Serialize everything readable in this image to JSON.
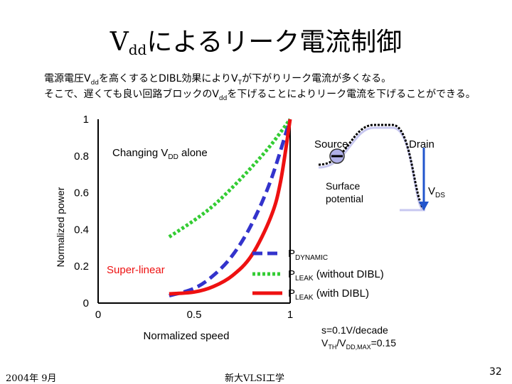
{
  "slide": {
    "title_main": "V",
    "title_sub": "dd",
    "title_rest": "によるリーク電流制御",
    "desc_line1": {
      "a": "電源電圧V",
      "sub1": "dd",
      "b": "を高くするとDIBL効果によりV",
      "sub2": "T",
      "c": "が下がりリーク電流が多くなる。"
    },
    "desc_line2": {
      "a": "そこで、遅くても良い回路ブロックのV",
      "sub1": "dd",
      "b": "を下げることによりリーク電流を下げることができる。"
    },
    "footer_left": "2004年  9月",
    "footer_center": "新大VLSI工学",
    "page_number": "32"
  },
  "chart_data": {
    "type": "line",
    "xlabel": "Normalized speed",
    "ylabel": "Normalized power",
    "xlim": [
      0,
      1
    ],
    "ylim": [
      0,
      1
    ],
    "xticks": [
      "0",
      "0.5",
      "1"
    ],
    "yticks": [
      "0",
      "0.2",
      "0.4",
      "0.6",
      "0.8",
      "1"
    ],
    "grid": false,
    "legend_position": "bottom-right",
    "colors": {
      "dynamic": "#3333cc",
      "leak_no_dibl": "#33cc33",
      "leak_dibl": "#ee1111"
    },
    "series": [
      {
        "key": "dynamic",
        "name_main": "P",
        "name_sub": "DYNAMIC",
        "name_rest": "",
        "x": [
          0.37,
          0.5,
          0.6,
          0.7,
          0.8,
          0.9,
          1.0
        ],
        "y": [
          0.04,
          0.08,
          0.15,
          0.26,
          0.43,
          0.67,
          1.0
        ]
      },
      {
        "key": "leak_no_dibl",
        "name_main": "P",
        "name_sub": "LEAK",
        "name_rest": " (without DIBL)",
        "x": [
          0.37,
          0.5,
          0.6,
          0.7,
          0.8,
          0.9,
          1.0
        ],
        "y": [
          0.36,
          0.45,
          0.53,
          0.63,
          0.74,
          0.86,
          1.0
        ]
      },
      {
        "key": "leak_dibl",
        "name_main": "P",
        "name_sub": "LEAK",
        "name_rest": " (with DIBL)",
        "x": [
          0.37,
          0.5,
          0.6,
          0.7,
          0.8,
          0.9,
          0.95,
          1.0
        ],
        "y": [
          0.05,
          0.06,
          0.09,
          0.15,
          0.26,
          0.47,
          0.66,
          1.0
        ]
      }
    ],
    "annotations": {
      "changing_main": "Changing V",
      "changing_sub": "DD",
      "changing_rest": " alone",
      "super_linear": "Super-linear",
      "source": "Source",
      "drain": "Drain",
      "surface_line1": "Surface",
      "surface_line2": "potential",
      "vds_main": "V",
      "vds_sub": "DS",
      "slope": "s=0.1V/decade",
      "ratio_main": "V",
      "ratio_sub1": "TH",
      "ratio_mid": "/V",
      "ratio_sub2": "DD,MAX",
      "ratio_rest": "=0.15"
    }
  }
}
